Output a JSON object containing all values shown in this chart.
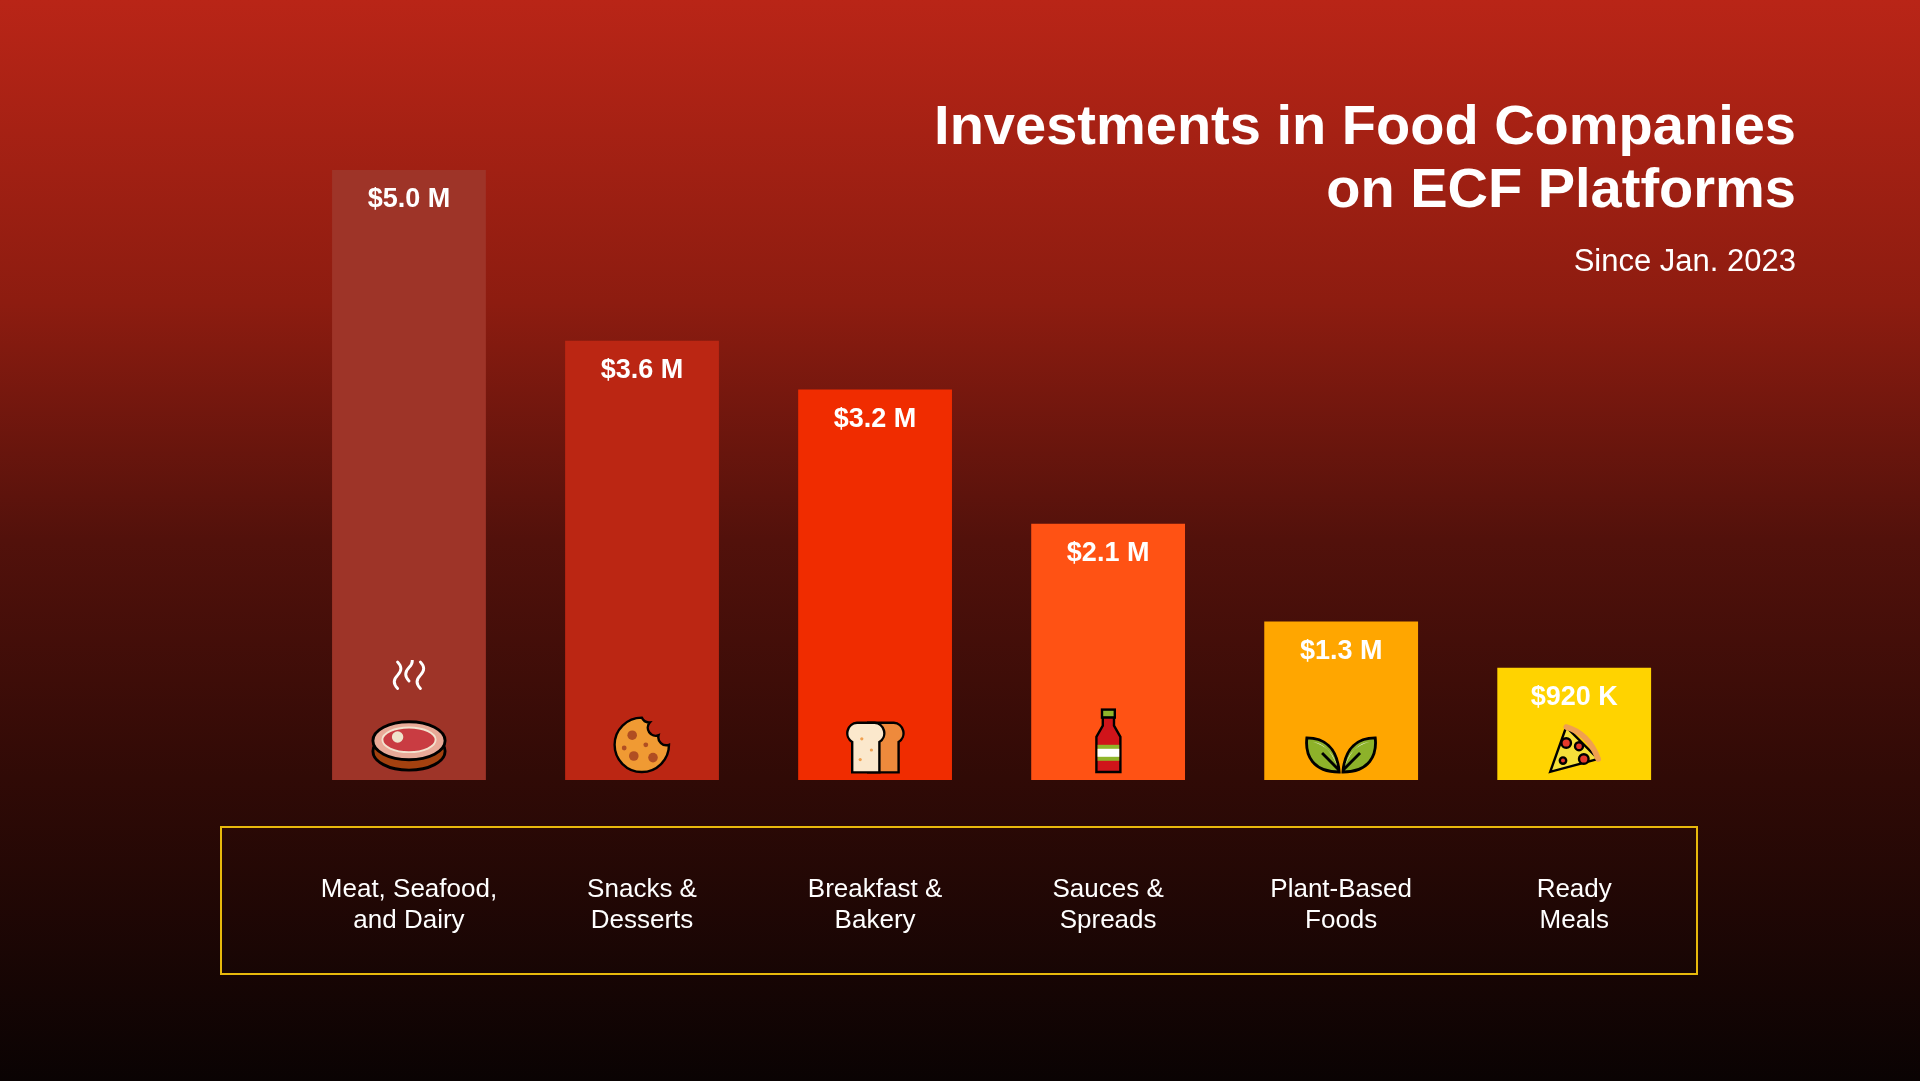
{
  "chart_data": {
    "type": "bar",
    "title": "Investments in Food Companies on ECF Platforms",
    "subtitle": "Since Jan. 2023",
    "categories": [
      "Meat, Seafood, and Dairy",
      "Snacks & Desserts",
      "Breakfast & Bakery",
      "Sauces & Spreads",
      "Plant-Based Foods",
      "Ready Meals"
    ],
    "values": [
      5.0,
      3.6,
      3.2,
      2.1,
      1.3,
      0.92
    ],
    "colors": [
      "#9e3428",
      "#bb2613",
      "#f02c00",
      "#ff5214",
      "#ffa600",
      "#ffd300"
    ],
    "value_labels": [
      "$5.0 M",
      "$3.6 M",
      "$3.2 M",
      "$2.1 M",
      "$1.3 M",
      "$920 K"
    ]
  }
}
